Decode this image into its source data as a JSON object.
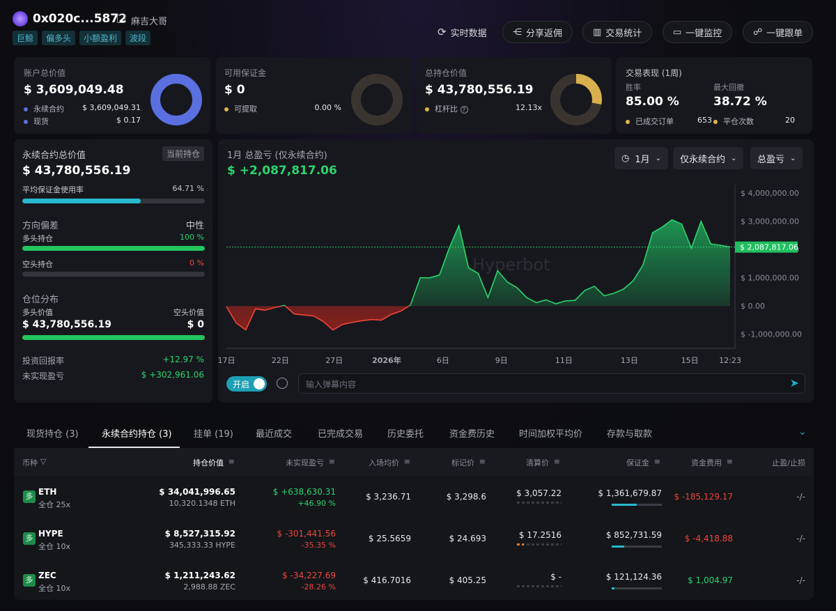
{
  "header": {
    "address": "0x020c...5872",
    "nickname": "麻吉大哥",
    "tags": [
      "巨鲸",
      "偏多头",
      "小额盈利",
      "波段"
    ],
    "buttons": {
      "realtime": "实时数据",
      "share": "分享返佣",
      "stats": "交易统计",
      "monitor": "一键监控",
      "follow": "一键跟单"
    }
  },
  "account": {
    "title": "账户总价值",
    "value": "$ 3,609,049.48",
    "perp_label": "永续合约",
    "perp_value": "$ 3,609,049.31",
    "spot_label": "现货",
    "spot_value": "$ 0.17",
    "perp_fraction": 1.0
  },
  "margin": {
    "title": "可用保证金",
    "value": "$ 0",
    "withdraw_label": "可提取",
    "withdraw_value": "0.00 %",
    "fraction": 0
  },
  "position": {
    "title": "总持仓价值",
    "value": "$ 43,780,556.19",
    "leverage_label": "杠杆比",
    "leverage_value": "12.13x",
    "fraction": 0.28
  },
  "performance": {
    "title": "交易表现 (1周)",
    "winrate_label": "胜率",
    "winrate_value": "85.00 %",
    "drawdown_label": "最大回撤",
    "drawdown_value": "38.72 %",
    "orders_label": "已成交订单",
    "orders_value": "653",
    "close_label": "平仓次数",
    "close_value": "20"
  },
  "perp": {
    "title": "永续合约总价值",
    "badge": "当前持仓",
    "value": "$ 43,780,556.19",
    "margin_rate_label": "平均保证金使用率",
    "margin_rate_value": "64.71 %",
    "margin_rate": 0.6471,
    "direction_label": "方向偏差",
    "direction_value": "中性",
    "long_label": "多头持仓",
    "long_value": "100 %",
    "long": 1.0,
    "short_label": "空头持仓",
    "short_value": "0 %",
    "short": 0,
    "dist_label": "仓位分布",
    "long_val_label": "多头价值",
    "short_val_label": "空头价值",
    "long_val": "$ 43,780,556.19",
    "short_val": "$ 0",
    "long_dist": 1.0,
    "roi_label": "投资回报率",
    "roi_value": "+12.97 %",
    "upnl_label": "未实现盈亏",
    "upnl_value": "$ +302,961.06"
  },
  "pnlchart": {
    "title": "1月 总盈亏 (仅永续合约)",
    "value": "$ +2,087,817.06",
    "sel_period": "1月",
    "sel_scope": "仅永续合约",
    "sel_metric": "总盈亏",
    "watermark": "Hyperbot",
    "toggle_label": "开启",
    "danmaku_placeholder": "输入弹幕内容"
  },
  "chart_data": {
    "type": "area",
    "title": "1月 总盈亏 (仅永续合约)",
    "x_ticks": [
      "17日",
      "22日",
      "27日",
      "2026年",
      "6日",
      "9日",
      "11日",
      "13日",
      "15日",
      "12:23"
    ],
    "y_ticks": [
      "$ 4,000,000.00",
      "$ 3,000,000.00",
      "$ 2,000,000.00",
      "$ 1,000,000.00",
      "$ 0.00",
      "$ -1,000,000.00"
    ],
    "ylim": [
      -1500000,
      4300000
    ],
    "current_label": "$ 2,087,817.06",
    "current_value": 2087817.06,
    "values": [
      -0.02,
      -0.6,
      -0.85,
      -0.1,
      -0.15,
      -0.05,
      0.02,
      -0.28,
      -0.32,
      -0.35,
      -0.55,
      -0.85,
      -0.65,
      -0.58,
      -0.52,
      -0.48,
      -0.5,
      -0.3,
      -0.18,
      0.03,
      1.0,
      1.0,
      1.1,
      2.05,
      2.85,
      1.35,
      1.15,
      0.3,
      1.25,
      0.85,
      0.65,
      0.3,
      0.12,
      0.22,
      0.08,
      0.18,
      0.2,
      0.55,
      0.7,
      0.36,
      0.45,
      0.6,
      0.9,
      1.45,
      2.6,
      2.8,
      3.05,
      2.9,
      2.05,
      3.0,
      2.2,
      2.15,
      2.09
    ]
  },
  "tabs": [
    "现货持仓 (3)",
    "永续合约持仓 (3)",
    "挂单 (19)",
    "最近成交",
    "已完成交易",
    "历史委托",
    "资金费历史",
    "时间加权平均价",
    "存款与取款"
  ],
  "table": {
    "headers": [
      "币种",
      "持仓价值",
      "未实现盈亏",
      "入场均价",
      "标记价",
      "清算价",
      "保证金",
      "资金费用",
      "止盈/止损"
    ],
    "rows": [
      {
        "icon": "多",
        "coin": "ETH",
        "mode": "全仓 25x",
        "value": "$ 34,041,996.65",
        "size": "10,320.1348 ETH",
        "upnl": "$ +638,630.31",
        "upnl_pct": "+46.90 %",
        "upnl_pos": true,
        "entry": "$ 3,236.71",
        "mark": "$ 3,298.6",
        "liq": "$ 3,057.22",
        "margin": "$ 1,361,679.87",
        "margin_fill": 0.5,
        "funding": "$ -185,129.17",
        "funding_pos": false,
        "tpsl": "-/-"
      },
      {
        "icon": "多",
        "coin": "HYPE",
        "mode": "全仓 10x",
        "value": "$ 8,527,315.92",
        "size": "345,333.33 HYPE",
        "upnl": "$ -301,441.56",
        "upnl_pct": "-35.35 %",
        "upnl_pos": false,
        "entry": "$ 25.5659",
        "mark": "$ 24.693",
        "liq": "$ 17.2516",
        "margin": "$ 852,731.59",
        "margin_fill": 0.25,
        "funding": "$ -4,418.88",
        "funding_pos": false,
        "tpsl": "-/-"
      },
      {
        "icon": "多",
        "coin": "ZEC",
        "mode": "全仓 10x",
        "value": "$ 1,211,243.62",
        "size": "2,988.88 ZEC",
        "upnl": "$ -34,227.69",
        "upnl_pct": "-28.26 %",
        "upnl_pos": false,
        "entry": "$ 416.7016",
        "mark": "$ 405.25",
        "liq": "$ -",
        "margin": "$ 121,124.36",
        "margin_fill": 0.05,
        "funding": "$ 1,004.97",
        "funding_pos": true,
        "tpsl": "-/-"
      }
    ]
  }
}
